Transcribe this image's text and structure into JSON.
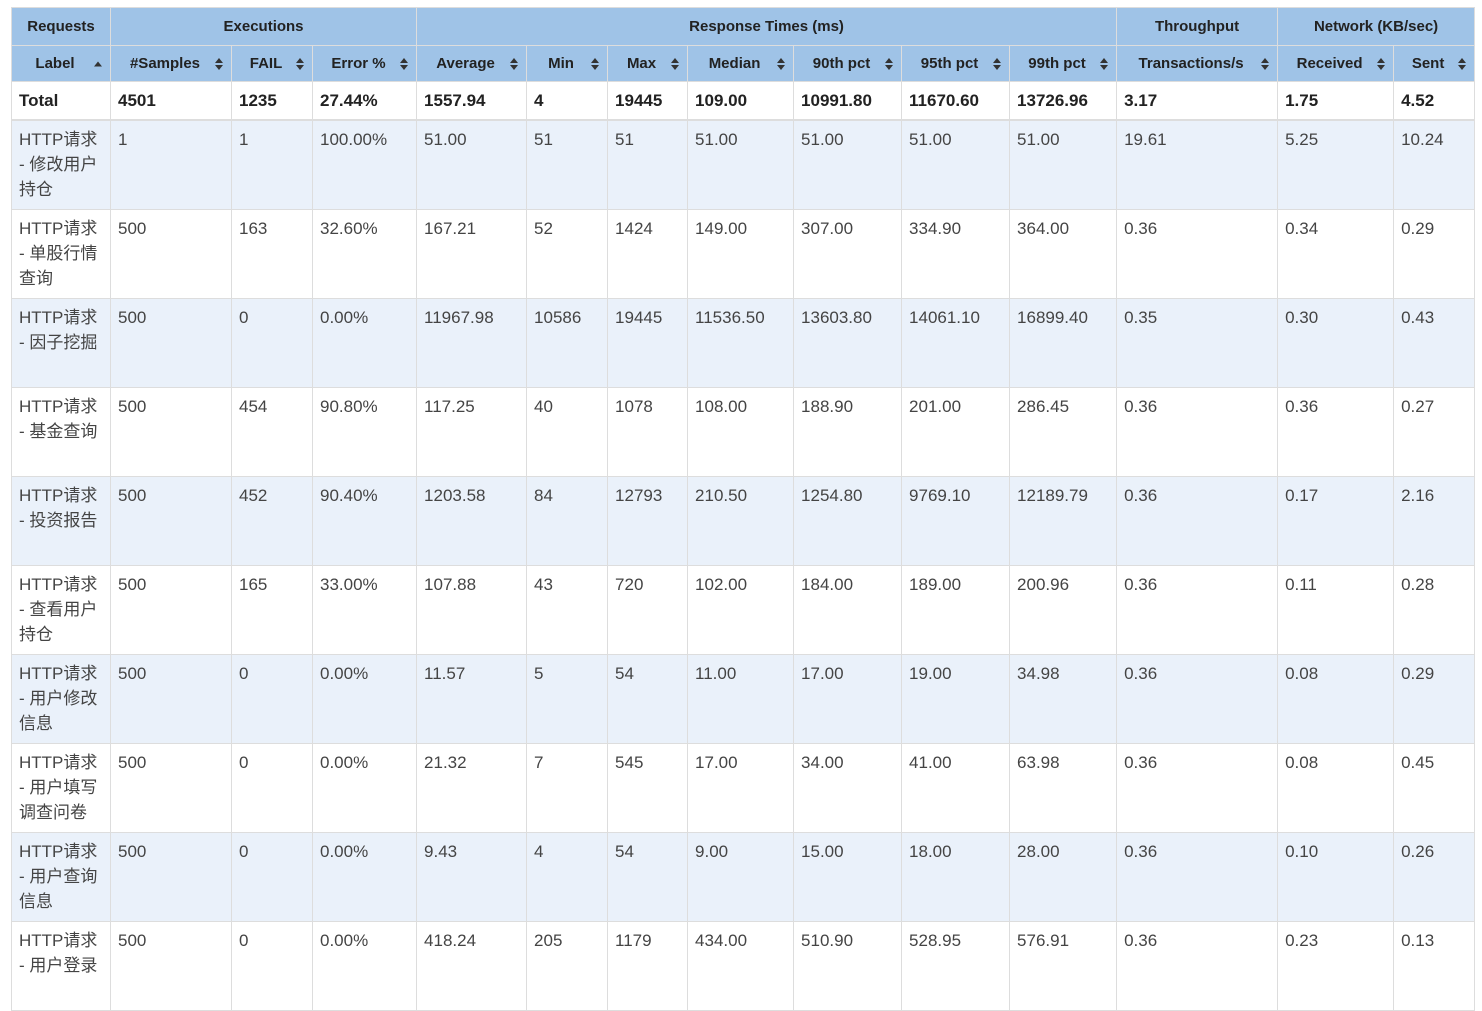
{
  "group_headers": {
    "requests": "Requests",
    "executions": "Executions",
    "response_times": "Response Times (ms)",
    "throughput": "Throughput",
    "network": "Network (KB/sec)"
  },
  "columns": [
    "Label",
    "#Samples",
    "FAIL",
    "Error %",
    "Average",
    "Min",
    "Max",
    "Median",
    "90th pct",
    "95th pct",
    "99th pct",
    "Transactions/s",
    "Received",
    "Sent"
  ],
  "sort": {
    "column": "Label",
    "direction": "ascending"
  },
  "total": [
    "Total",
    "4501",
    "1235",
    "27.44%",
    "1557.94",
    "4",
    "19445",
    "109.00",
    "10991.80",
    "11670.60",
    "13726.96",
    "3.17",
    "1.75",
    "4.52"
  ],
  "rows": [
    [
      "HTTP请求 - 修改用户持仓",
      "1",
      "1",
      "100.00%",
      "51.00",
      "51",
      "51",
      "51.00",
      "51.00",
      "51.00",
      "51.00",
      "19.61",
      "5.25",
      "10.24"
    ],
    [
      "HTTP请求 - 单股行情查询",
      "500",
      "163",
      "32.60%",
      "167.21",
      "52",
      "1424",
      "149.00",
      "307.00",
      "334.90",
      "364.00",
      "0.36",
      "0.34",
      "0.29"
    ],
    [
      "HTTP请求 - 因子挖掘",
      "500",
      "0",
      "0.00%",
      "11967.98",
      "10586",
      "19445",
      "11536.50",
      "13603.80",
      "14061.10",
      "16899.40",
      "0.35",
      "0.30",
      "0.43"
    ],
    [
      "HTTP请求 - 基金查询",
      "500",
      "454",
      "90.80%",
      "117.25",
      "40",
      "1078",
      "108.00",
      "188.90",
      "201.00",
      "286.45",
      "0.36",
      "0.36",
      "0.27"
    ],
    [
      "HTTP请求 - 投资报告",
      "500",
      "452",
      "90.40%",
      "1203.58",
      "84",
      "12793",
      "210.50",
      "1254.80",
      "9769.10",
      "12189.79",
      "0.36",
      "0.17",
      "2.16"
    ],
    [
      "HTTP请求 - 查看用户持仓",
      "500",
      "165",
      "33.00%",
      "107.88",
      "43",
      "720",
      "102.00",
      "184.00",
      "189.00",
      "200.96",
      "0.36",
      "0.11",
      "0.28"
    ],
    [
      "HTTP请求 - 用户修改信息",
      "500",
      "0",
      "0.00%",
      "11.57",
      "5",
      "54",
      "11.00",
      "17.00",
      "19.00",
      "34.98",
      "0.36",
      "0.08",
      "0.29"
    ],
    [
      "HTTP请求 - 用户填写调查问卷",
      "500",
      "0",
      "0.00%",
      "21.32",
      "7",
      "545",
      "17.00",
      "34.00",
      "41.00",
      "63.98",
      "0.36",
      "0.08",
      "0.45"
    ],
    [
      "HTTP请求 - 用户查询信息",
      "500",
      "0",
      "0.00%",
      "9.43",
      "4",
      "54",
      "9.00",
      "15.00",
      "18.00",
      "28.00",
      "0.36",
      "0.10",
      "0.26"
    ],
    [
      "HTTP请求 - 用户登录",
      "500",
      "0",
      "0.00%",
      "418.24",
      "205",
      "1179",
      "434.00",
      "510.90",
      "528.95",
      "576.91",
      "0.36",
      "0.23",
      "0.13"
    ]
  ]
}
